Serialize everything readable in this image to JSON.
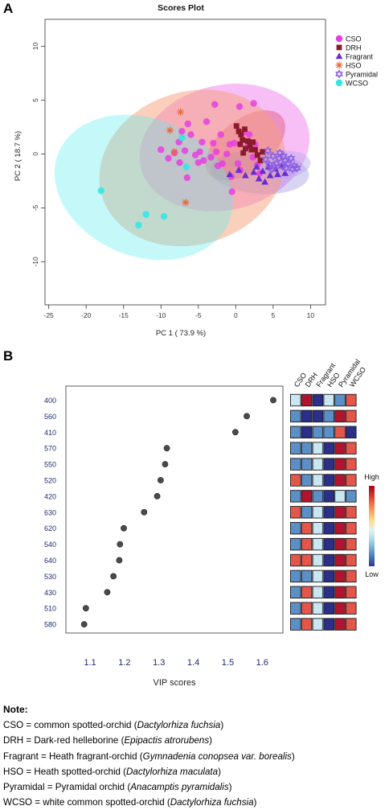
{
  "panel_a_letter": "A",
  "panel_b_letter": "B",
  "chart_data": [
    {
      "type": "scatter",
      "title": "Scores Plot",
      "xlabel": "PC 1 ( 73.9 %)",
      "ylabel": "PC 2 ( 18.7 %)",
      "xlim": [
        -25.5,
        12
      ],
      "ylim": [
        -14,
        12.5
      ],
      "xticks": [
        "-25",
        "-20",
        "-15",
        "-10",
        "-5",
        "0",
        "5",
        "10"
      ],
      "yticks": [
        "-10",
        "-5",
        "0",
        "5",
        "10"
      ],
      "grid": false,
      "legend_position": "top-right",
      "series": [
        {
          "name": "CSO",
          "color": "#e83ee0",
          "marker": "circle",
          "points": [
            [
              -10,
              0.4
            ],
            [
              -9,
              -0.4
            ],
            [
              -8.2,
              0.1
            ],
            [
              -7.6,
              1.1
            ],
            [
              -7.5,
              -0.8
            ],
            [
              -7.2,
              2.1
            ],
            [
              -6.8,
              0.3
            ],
            [
              -6.4,
              2.8
            ],
            [
              -6.5,
              -2.2
            ],
            [
              -6,
              1.8
            ],
            [
              -5.4,
              -0.1
            ],
            [
              -5,
              -0.8
            ],
            [
              -4.8,
              0.2
            ],
            [
              -4.5,
              1.1
            ],
            [
              -4.3,
              -0.6
            ],
            [
              -3.9,
              3.0
            ],
            [
              -3.3,
              -0.3
            ],
            [
              -3,
              1.0
            ],
            [
              -2.6,
              0.2
            ],
            [
              -2.4,
              -1.1
            ],
            [
              -2,
              1.8
            ],
            [
              -1.8,
              -0.9
            ],
            [
              -1.2,
              0
            ],
            [
              -0.8,
              0.9
            ],
            [
              -0.6,
              -2.1
            ],
            [
              -0.5,
              -3.5
            ],
            [
              -0.2,
              1.0
            ],
            [
              0.3,
              -0.9
            ],
            [
              0.6,
              -1.5
            ],
            [
              1,
              2.0
            ],
            [
              1.6,
              0.7
            ],
            [
              1.8,
              1.8
            ],
            [
              2.3,
              -0.3
            ],
            [
              2.6,
              0.9
            ],
            [
              2.9,
              -1.0
            ],
            [
              3.2,
              -1.8
            ],
            [
              2.4,
              4.7
            ],
            [
              0.5,
              4.4
            ],
            [
              -2.8,
              4.6
            ]
          ]
        },
        {
          "name": "DRH",
          "color": "#8b1a2c",
          "marker": "square",
          "points": [
            [
              0.1,
              2.6
            ],
            [
              0.4,
              2.1
            ],
            [
              0.7,
              1.8
            ],
            [
              0.9,
              1.3
            ],
            [
              1.2,
              2.3
            ],
            [
              1.6,
              1.2
            ],
            [
              1.9,
              0.8
            ],
            [
              2.3,
              1.1
            ],
            [
              2.6,
              0.4
            ],
            [
              2.1,
              0.4
            ],
            [
              1.3,
              0.5
            ],
            [
              0.6,
              0.9
            ],
            [
              1.0,
              0.1
            ],
            [
              2.9,
              -0.1
            ],
            [
              3.3,
              -0.6
            ],
            [
              3.6,
              0.2
            ]
          ]
        },
        {
          "name": "Fragrant",
          "color": "#6a2ccf",
          "marker": "triangle",
          "points": [
            [
              -0.8,
              -1.9
            ],
            [
              0.4,
              -1.5
            ],
            [
              1.3,
              -2.0
            ],
            [
              2.4,
              -1.7
            ],
            [
              3.1,
              -2.3
            ],
            [
              3.6,
              -1.6
            ],
            [
              4.4,
              -1.2
            ],
            [
              4.6,
              -2.0
            ],
            [
              5.3,
              -1.4
            ],
            [
              5.6,
              -1.9
            ],
            [
              6.1,
              -1.1
            ],
            [
              6.6,
              -1.8
            ],
            [
              3.9,
              -2.6
            ],
            [
              2.8,
              -1.2
            ]
          ]
        },
        {
          "name": "HSO",
          "color": "#e66a3a",
          "marker": "star",
          "points": [
            [
              -7.4,
              3.9
            ],
            [
              -8.8,
              2.2
            ],
            [
              -6.7,
              -4.5
            ],
            [
              -8.2,
              0.2
            ]
          ]
        },
        {
          "name": "Pyramidal",
          "color": "#8a5fe6",
          "marker": "hexagram",
          "points": [
            [
              4,
              -0.5
            ],
            [
              4.5,
              -1.0
            ],
            [
              5,
              -0.2
            ],
            [
              5.4,
              -0.9
            ],
            [
              5.8,
              -0.4
            ],
            [
              6.2,
              -1.1
            ],
            [
              6.6,
              -0.6
            ],
            [
              7,
              -0.9
            ],
            [
              7.4,
              -0.4
            ],
            [
              7.8,
              -1.1
            ],
            [
              8.2,
              -1.3
            ],
            [
              5.9,
              0.1
            ],
            [
              4.8,
              -1.4
            ],
            [
              6.7,
              -1.3
            ],
            [
              7.6,
              -1.4
            ],
            [
              4.3,
              0.3
            ],
            [
              6.4,
              -0.2
            ],
            [
              5.2,
              -1.2
            ]
          ]
        },
        {
          "name": "WCSO",
          "color": "#2ee6e6",
          "marker": "circle",
          "points": [
            [
              -18,
              -3.4
            ],
            [
              -13,
              -6.6
            ],
            [
              -12,
              -5.6
            ],
            [
              -9.6,
              -5.8
            ],
            [
              -7.2,
              1.5
            ],
            [
              -6.6,
              -1.2
            ]
          ]
        }
      ],
      "ellipses": [
        {
          "series": "CSO",
          "center": [
            -1.5,
            0.6
          ],
          "rx": 11.5,
          "ry": 5.8,
          "angle_deg": -13,
          "color": "#e83ee0",
          "opacity": 0.33
        },
        {
          "series": "DRH",
          "center": [
            1.3,
            0.8
          ],
          "rx": 6.2,
          "ry": 2.4,
          "angle_deg": -38,
          "color": "#d8486a",
          "opacity": 0.38
        },
        {
          "series": "Fragrant",
          "center": [
            3.2,
            -1.7
          ],
          "rx": 6.6,
          "ry": 2.0,
          "angle_deg": 4,
          "color": "#7a73d6",
          "opacity": 0.3
        },
        {
          "series": "HSO",
          "center": [
            -5.8,
            -1.3
          ],
          "rx": 10.2,
          "ry": 8.8,
          "angle_deg": 72,
          "color": "#f6a079",
          "opacity": 0.5
        },
        {
          "series": "Pyramidal",
          "center": [
            6.2,
            -1.0
          ],
          "rx": 3.8,
          "ry": 1.3,
          "angle_deg": -5,
          "color": "#b9a6f0",
          "opacity": 0.45
        },
        {
          "series": "WCSO",
          "center": [
            -12.3,
            -3.1
          ],
          "rx": 12.3,
          "ry": 6.4,
          "angle_deg": 22,
          "color": "#5aeded",
          "opacity": 0.35
        }
      ]
    },
    {
      "type": "dot",
      "xlabel": "VIP scores",
      "xlim": [
        1.03,
        1.66
      ],
      "xticks": [
        "1.1",
        "1.2",
        "1.3",
        "1.4",
        "1.5",
        "1.6"
      ],
      "grid": false,
      "categories": [
        "400",
        "560",
        "410",
        "570",
        "550",
        "520",
        "420",
        "630",
        "620",
        "540",
        "640",
        "530",
        "430",
        "510",
        "580"
      ],
      "values": [
        1.632,
        1.555,
        1.522,
        1.323,
        1.318,
        1.305,
        1.295,
        1.257,
        1.198,
        1.187,
        1.185,
        1.168,
        1.15,
        1.088,
        1.083
      ],
      "point_color": "#4a4a4a"
    },
    {
      "type": "heatmap",
      "columns": [
        "CSO",
        "DRH",
        "Fragrant",
        "HSO",
        "Pyramidal",
        "WCSO"
      ],
      "rows": [
        "400",
        "560",
        "410",
        "570",
        "550",
        "520",
        "420",
        "630",
        "620",
        "540",
        "640",
        "530",
        "430",
        "510",
        "580"
      ],
      "levels": [
        [
          1,
          5,
          4,
          1,
          2,
          3
        ],
        [
          2,
          4,
          4,
          2,
          5,
          3
        ],
        [
          2,
          4,
          2,
          2,
          3,
          4
        ],
        [
          2,
          2,
          1,
          4,
          5,
          3
        ],
        [
          2,
          2,
          1,
          4,
          5,
          3
        ],
        [
          3,
          2,
          1,
          4,
          5,
          3
        ],
        [
          2,
          5,
          2,
          4,
          1,
          2
        ],
        [
          3,
          2,
          1,
          4,
          5,
          3
        ],
        [
          2,
          3,
          1,
          4,
          5,
          3
        ],
        [
          2,
          3,
          1,
          4,
          5,
          3
        ],
        [
          3,
          3,
          1,
          4,
          5,
          3
        ],
        [
          2,
          2,
          1,
          4,
          5,
          3
        ],
        [
          2,
          3,
          1,
          4,
          5,
          3
        ],
        [
          2,
          3,
          1,
          4,
          5,
          3
        ],
        [
          2,
          3,
          1,
          4,
          5,
          3
        ]
      ],
      "level_colors": [
        "#f4c987",
        "#c9e6f3",
        "#5b8fc7",
        "#e4564a",
        "#2b2f8a",
        "#b0142e"
      ],
      "colorbar_labels": {
        "high": "High",
        "low": "Low"
      },
      "colorbar_stops": [
        "#a50026",
        "#d73027",
        "#f46d43",
        "#fdae61",
        "#fee090",
        "#e0f3f8",
        "#abd9e9",
        "#74add1",
        "#4575b4",
        "#313695"
      ]
    }
  ],
  "note": {
    "title": "Note:",
    "lines": [
      {
        "prefix": "CSO = common spotted-orchid (",
        "italic": "Dactylorhiza fuchsia",
        "suffix": ")"
      },
      {
        "prefix": "DRH = Dark-red helleborine (",
        "italic": "Epipactis atrorubens",
        "suffix": ")"
      },
      {
        "prefix": "Fragrant = Heath fragrant-orchid (",
        "italic": "Gymnadenia conopsea var. borealis",
        "suffix": ")"
      },
      {
        "prefix": "HSO = Heath spotted-orchid (",
        "italic": "Dactylorhiza maculata",
        "suffix": ")"
      },
      {
        "prefix": "Pyramidal = Pyramidal orchid (",
        "italic": "Anacamptis pyramidalis",
        "suffix": ")"
      },
      {
        "prefix": "WCSO = white common spotted-orchid (",
        "italic": "Dactylorhiza fuchsia",
        "suffix": ")"
      }
    ]
  }
}
